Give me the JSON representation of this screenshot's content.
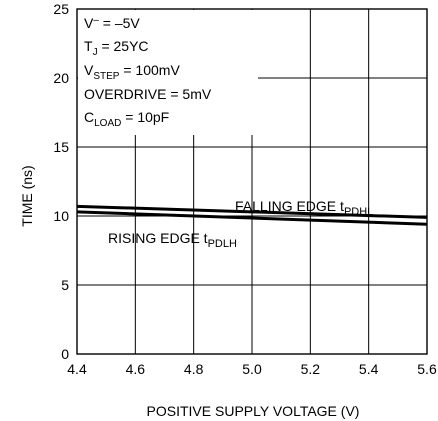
{
  "chart_data": {
    "type": "line",
    "xlabel": "POSITIVE SUPPLY VOLTAGE (V)",
    "ylabel": "TIME (ns)",
    "xlim": [
      4.4,
      5.6
    ],
    "ylim": [
      0,
      25
    ],
    "x_ticks": [
      "4.4",
      "4.6",
      "4.8",
      "5.0",
      "5.2",
      "5.4",
      "5.6"
    ],
    "y_ticks": [
      "0",
      "5",
      "10",
      "15",
      "20",
      "25"
    ],
    "grid": true,
    "annotations": [
      {
        "main": "V",
        "sup": "–",
        "rest": " = –5V"
      },
      {
        "main": "T",
        "sub": "J",
        "rest": " = 25ΥC"
      },
      {
        "main": "V",
        "sub": "STEP",
        "rest": " = 100mV"
      },
      {
        "main": "OVERDRIVE = 5mV"
      },
      {
        "main": "C",
        "sub": "LOAD",
        "rest": " = 10pF"
      }
    ],
    "series": [
      {
        "name": "FALLING EDGE t",
        "name_sub": "PDHL",
        "x": [
          4.4,
          5.6
        ],
        "y": [
          10.7,
          9.9
        ]
      },
      {
        "name": "RISING EDGE t",
        "name_sub": "PDLH",
        "x": [
          4.4,
          5.6
        ],
        "y": [
          10.3,
          9.4
        ]
      }
    ]
  }
}
